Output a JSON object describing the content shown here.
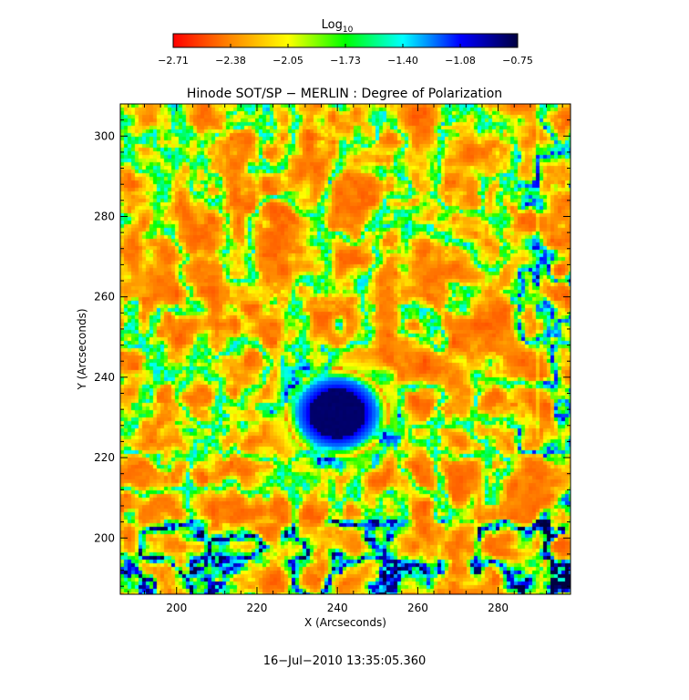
{
  "chart_data": {
    "type": "heatmap",
    "title": "Hinode SOT/SP − MERLIN : Degree of Polarization",
    "xlabel": "X (Arcseconds)",
    "ylabel": "Y (Arcseconds)",
    "xlim": [
      186,
      298
    ],
    "ylim": [
      186,
      308
    ],
    "xticks": [
      "200",
      "220",
      "240",
      "260",
      "280"
    ],
    "yticks": [
      "200",
      "220",
      "240",
      "260",
      "280",
      "300"
    ],
    "colorbar": {
      "label": "Log",
      "label_subscript": "10",
      "range": [
        -2.71,
        -0.75
      ],
      "ticks": [
        "−2.71",
        "−2.38",
        "−2.05",
        "−1.73",
        "−1.40",
        "−1.08",
        "−0.75"
      ],
      "colors": [
        "#ff0000",
        "#ff8800",
        "#ffff00",
        "#00ff00",
        "#00ffff",
        "#0000ff",
        "#000040"
      ]
    },
    "features": [
      {
        "name": "sunspot umbra",
        "center": [
          240,
          231
        ],
        "radius": 7,
        "value": -0.85
      },
      {
        "name": "sunspot penumbra",
        "center": [
          240,
          231
        ],
        "radius": 13,
        "value": -1.5
      }
    ]
  },
  "timestamp": "16−Jul−2010 13:35:05.360"
}
